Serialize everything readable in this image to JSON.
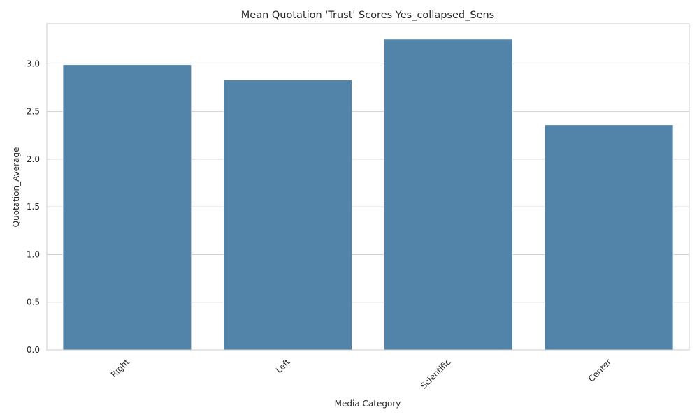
{
  "chart_data": {
    "type": "bar",
    "title": "Mean Quotation 'Trust' Scores Yes_collapsed_Sens",
    "xlabel": "Media Category",
    "ylabel": "Quotation_Average",
    "categories": [
      "Right",
      "Left",
      "Scientific",
      "Center"
    ],
    "values": [
      2.99,
      2.83,
      3.26,
      2.36
    ],
    "ylim": [
      0,
      3.42
    ],
    "yticks": [
      "0.0",
      "0.5",
      "1.0",
      "1.5",
      "2.0",
      "2.5",
      "3.0"
    ],
    "grid": true,
    "bar_color": "#5283a8",
    "grid_color": "#d0d0d0",
    "spine_color": "#cccccc"
  }
}
